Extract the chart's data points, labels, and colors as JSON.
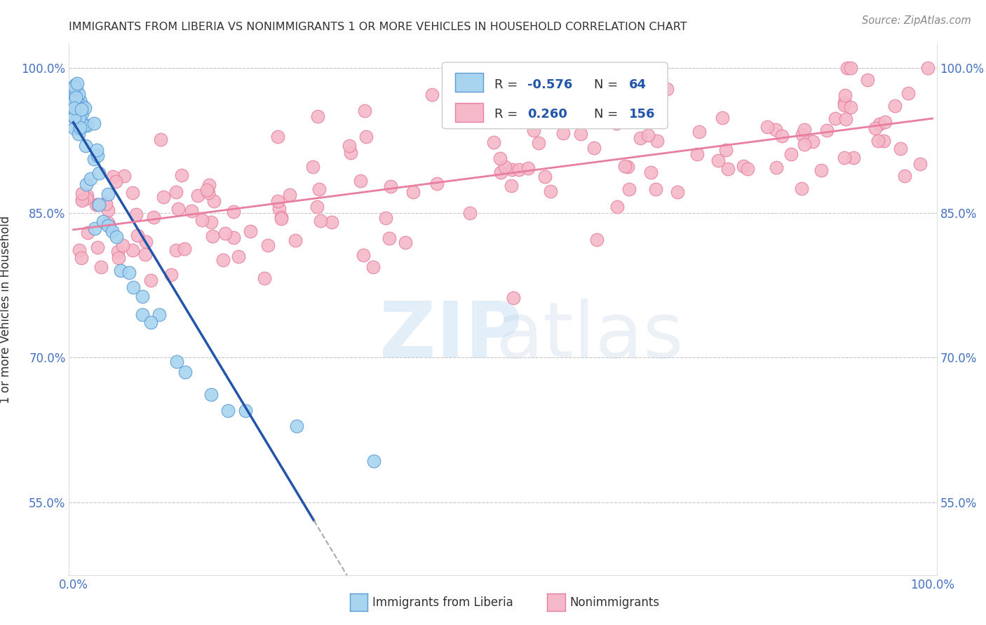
{
  "title": "IMMIGRANTS FROM LIBERIA VS NONIMMIGRANTS 1 OR MORE VEHICLES IN HOUSEHOLD CORRELATION CHART",
  "source": "Source: ZipAtlas.com",
  "ylabel": "1 or more Vehicles in Household",
  "ylim": [
    0.475,
    1.025
  ],
  "xlim": [
    -0.005,
    1.005
  ],
  "yticks": [
    0.55,
    0.7,
    0.85,
    1.0
  ],
  "ytick_labels": [
    "55.0%",
    "70.0%",
    "85.0%",
    "100.0%"
  ],
  "blue_color": "#a8d4f0",
  "blue_edge": "#5b9bd5",
  "pink_color": "#f4b8c8",
  "pink_edge": "#e87fa0",
  "trend_blue": "#2255aa",
  "trend_pink": "#e87fa0",
  "grid_color": "#cccccc"
}
